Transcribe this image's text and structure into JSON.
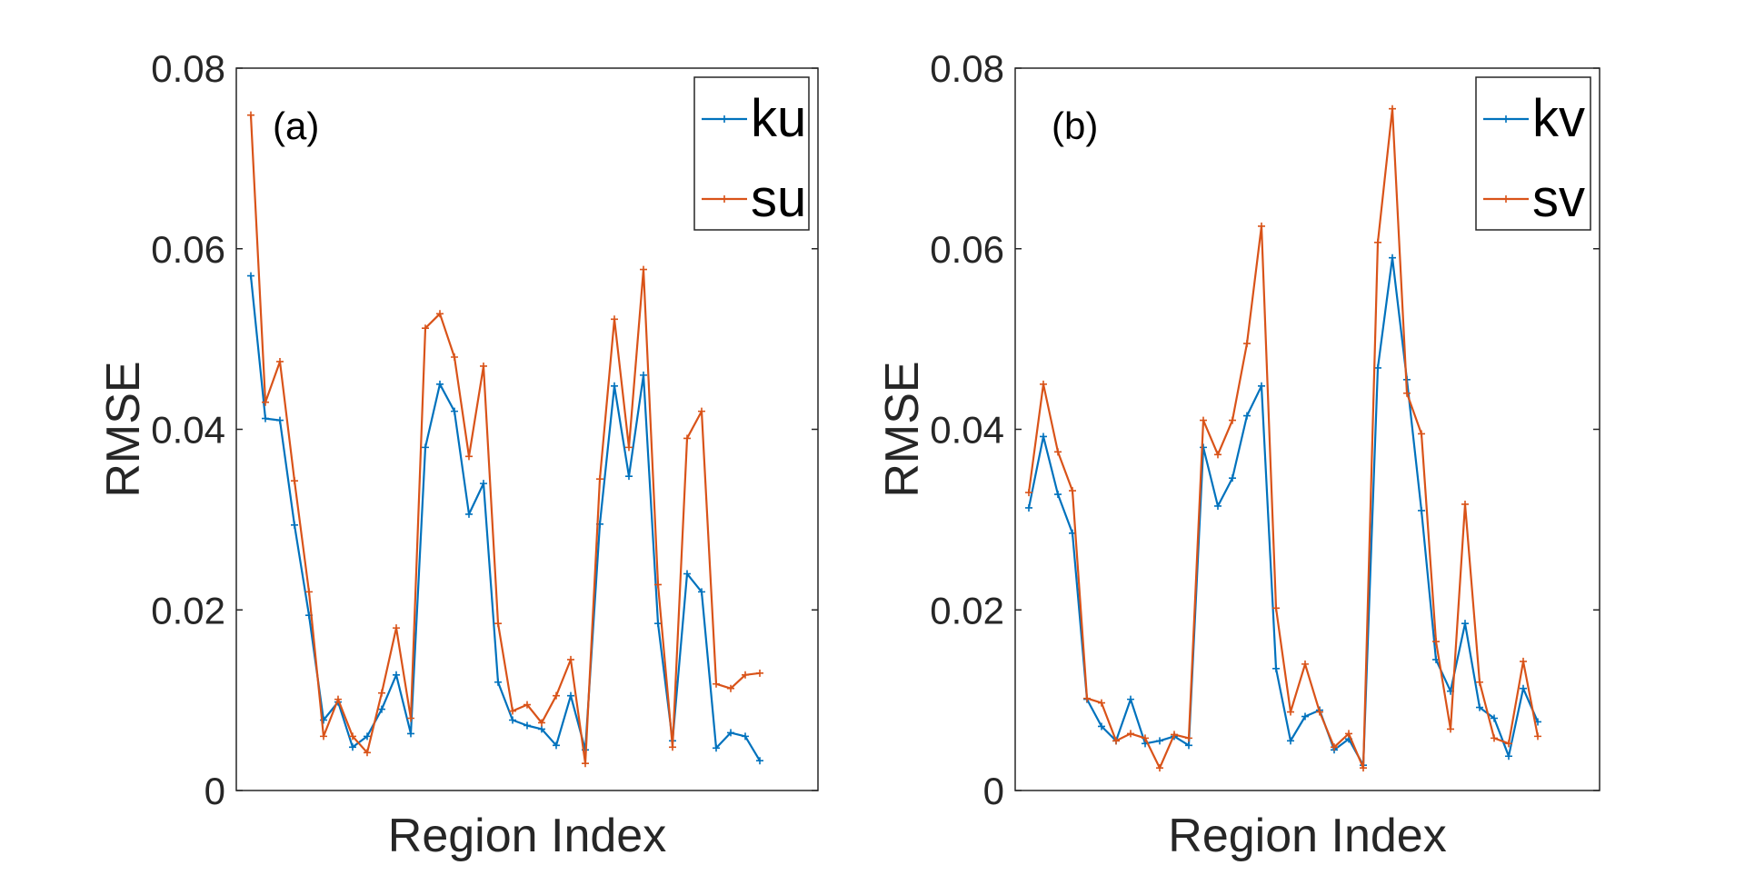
{
  "chart_data": [
    {
      "type": "line",
      "panel_label": "(a)",
      "xlabel": "Region Index",
      "ylabel": "RMSE",
      "ylim": [
        0,
        0.08
      ],
      "yticks": [
        0,
        0.02,
        0.04,
        0.06,
        0.08
      ],
      "ytick_labels": [
        "0",
        "0.02",
        "0.04",
        "0.06",
        "0.08"
      ],
      "x_ticks_shown": false,
      "grid": false,
      "legend_position": "top-right",
      "series": [
        {
          "name": "ku",
          "color": "#0072BD",
          "marker": "plus",
          "values": [
            0.057,
            0.0412,
            0.041,
            0.0294,
            0.0194,
            0.0078,
            0.0098,
            0.0048,
            0.006,
            0.009,
            0.0128,
            0.0063,
            0.038,
            0.045,
            0.042,
            0.0306,
            0.034,
            0.012,
            0.0078,
            0.0072,
            0.0068,
            0.005,
            0.0105,
            0.0045,
            0.0295,
            0.0448,
            0.0348,
            0.046,
            0.0185,
            0.0055,
            0.024,
            0.022,
            0.0047,
            0.0064,
            0.006,
            0.0033
          ]
        },
        {
          "name": "su",
          "color": "#D95319",
          "marker": "plus",
          "values": [
            0.0748,
            0.043,
            0.0475,
            0.0343,
            0.022,
            0.006,
            0.0101,
            0.006,
            0.0042,
            0.0108,
            0.018,
            0.008,
            0.0512,
            0.0528,
            0.048,
            0.037,
            0.047,
            0.0185,
            0.0088,
            0.0095,
            0.0075,
            0.0105,
            0.0145,
            0.003,
            0.0345,
            0.0522,
            0.038,
            0.0577,
            0.0228,
            0.0048,
            0.039,
            0.042,
            0.0118,
            0.0113,
            0.0128,
            0.013
          ]
        }
      ]
    },
    {
      "type": "line",
      "panel_label": "(b)",
      "xlabel": "Region Index",
      "ylabel": "RMSE",
      "ylim": [
        0,
        0.08
      ],
      "yticks": [
        0,
        0.02,
        0.04,
        0.06,
        0.08
      ],
      "ytick_labels": [
        "0",
        "0.02",
        "0.04",
        "0.06",
        "0.08"
      ],
      "x_ticks_shown": false,
      "grid": false,
      "legend_position": "top-right",
      "series": [
        {
          "name": "kv",
          "color": "#0072BD",
          "marker": "plus",
          "values": [
            0.0313,
            0.0392,
            0.0328,
            0.0285,
            0.0101,
            0.0071,
            0.0055,
            0.0101,
            0.0052,
            0.0055,
            0.006,
            0.005,
            0.038,
            0.0315,
            0.0346,
            0.0415,
            0.0448,
            0.0135,
            0.0055,
            0.0082,
            0.0089,
            0.0045,
            0.0057,
            0.0028,
            0.0468,
            0.059,
            0.0455,
            0.031,
            0.0145,
            0.011,
            0.0185,
            0.0092,
            0.008,
            0.0038,
            0.0113,
            0.0076
          ]
        },
        {
          "name": "sv",
          "color": "#D95319",
          "marker": "plus",
          "values": [
            0.033,
            0.045,
            0.0375,
            0.0332,
            0.0102,
            0.0097,
            0.0055,
            0.0063,
            0.0058,
            0.0025,
            0.0062,
            0.0058,
            0.041,
            0.0372,
            0.041,
            0.0495,
            0.0625,
            0.0202,
            0.0087,
            0.014,
            0.0087,
            0.0048,
            0.0063,
            0.0025,
            0.0607,
            0.0755,
            0.044,
            0.0395,
            0.0165,
            0.0068,
            0.0317,
            0.012,
            0.0058,
            0.0052,
            0.0143,
            0.006
          ]
        }
      ]
    }
  ]
}
